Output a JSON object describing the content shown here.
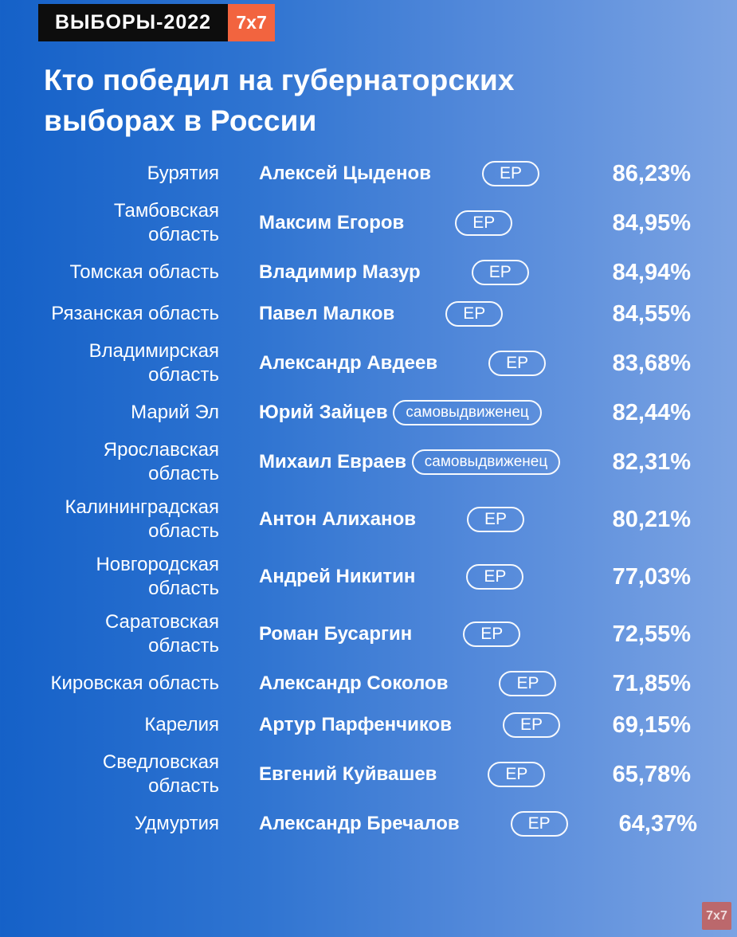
{
  "header": {
    "tag_label": "ВЫБОРЫ-2022",
    "brand_label": "7x7"
  },
  "title": "Кто победил на губернаторских выборах в России",
  "watermark_label": "7x7",
  "colors": {
    "background_start": "#1561c8",
    "background_end": "#7ba3e3",
    "tag_bg": "#0d0d0d",
    "brand_bg": "#f2643f",
    "text": "#ffffff",
    "watermark_bg": "#d6523f"
  },
  "chart_data": {
    "type": "table",
    "title": "Кто победил на губернаторских выборах в России",
    "columns": [
      "region",
      "winner",
      "party",
      "percent"
    ],
    "party_labels": {
      "er": "ЕР",
      "self": "самовыдвиженец"
    },
    "rows": [
      {
        "region": "Бурятия",
        "winner": "Алексей Цыденов",
        "party": "ЕР",
        "percent_display": "86,23%",
        "percent_value": 86.23
      },
      {
        "region": "Тамбовская область",
        "winner": "Максим Егоров",
        "party": "ЕР",
        "percent_display": "84,95%",
        "percent_value": 84.95
      },
      {
        "region": "Томская область",
        "winner": "Владимир Мазур",
        "party": "ЕР",
        "percent_display": "84,94%",
        "percent_value": 84.94
      },
      {
        "region": "Рязанская область",
        "winner": "Павел Малков",
        "party": "ЕР",
        "percent_display": "84,55%",
        "percent_value": 84.55
      },
      {
        "region": "Владимирская область",
        "winner": "Александр Авдеев",
        "party": "ЕР",
        "percent_display": "83,68%",
        "percent_value": 83.68
      },
      {
        "region": "Марий Эл",
        "winner": "Юрий Зайцев",
        "party": "самовыдвиженец",
        "percent_display": "82,44%",
        "percent_value": 82.44
      },
      {
        "region": "Ярославская область",
        "winner": "Михаил Евраев",
        "party": "самовыдвиженец",
        "percent_display": "82,31%",
        "percent_value": 82.31
      },
      {
        "region": "Калининградская область",
        "winner": "Антон Алиханов",
        "party": "ЕР",
        "percent_display": "80,21%",
        "percent_value": 80.21
      },
      {
        "region": "Новгородская область",
        "winner": "Андрей Никитин",
        "party": "ЕР",
        "percent_display": "77,03%",
        "percent_value": 77.03
      },
      {
        "region": "Саратовская область",
        "winner": "Роман Бусаргин",
        "party": "ЕР",
        "percent_display": "72,55%",
        "percent_value": 72.55
      },
      {
        "region": "Кировская область",
        "winner": "Александр Соколов",
        "party": "ЕР",
        "percent_display": "71,85%",
        "percent_value": 71.85
      },
      {
        "region": "Карелия",
        "winner": "Артур Парфенчиков",
        "party": "ЕР",
        "percent_display": "69,15%",
        "percent_value": 69.15
      },
      {
        "region": "Сведловская область",
        "winner": "Евгений Куйвашев",
        "party": "ЕР",
        "percent_display": "65,78%",
        "percent_value": 65.78
      },
      {
        "region": "Удмуртия",
        "winner": "Александр Бречалов",
        "party": "ЕР",
        "percent_display": "64,37%",
        "percent_value": 64.37
      }
    ]
  }
}
